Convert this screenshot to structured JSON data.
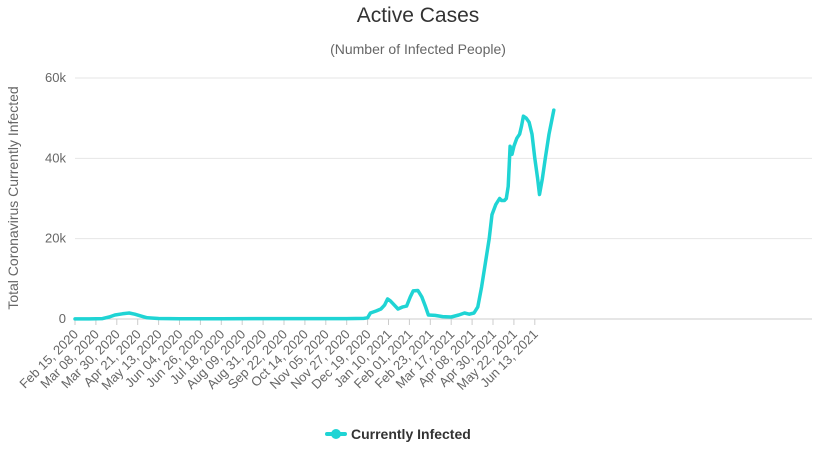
{
  "chart_data": {
    "type": "line",
    "title": "Active Cases",
    "subtitle": "(Number of Infected People)",
    "xlabel": "",
    "ylabel": "Total Coronavirus Currently Infected",
    "ylim": [
      0,
      60000
    ],
    "y_ticks": [
      0,
      20000,
      40000,
      60000
    ],
    "y_tick_labels": [
      "0",
      "20k",
      "40k",
      "60k"
    ],
    "x_tick_labels": [
      "Feb 15, 2020",
      "Mar 08, 2020",
      "Mar 30, 2020",
      "Apr 21, 2020",
      "May 13, 2020",
      "Jun 04, 2020",
      "Jun 26, 2020",
      "Jul 18, 2020",
      "Aug 09, 2020",
      "Aug 31, 2020",
      "Sep 22, 2020",
      "Oct 14, 2020",
      "Nov 05, 2020",
      "Nov 27, 2020",
      "Dec 19, 2020",
      "Jan 10, 2021",
      "Feb 01, 2021",
      "Feb 23, 2021",
      "Mar 17, 2021",
      "Apr 08, 2021",
      "Apr 30, 2021",
      "May 22, 2021",
      "Jun 13, 2021"
    ],
    "grid": true,
    "legend_position": "bottom-center",
    "series": [
      {
        "name": "Currently Infected",
        "color": "#1fd4d4",
        "points": [
          [
            "2020-02-15",
            20
          ],
          [
            "2020-03-01",
            20
          ],
          [
            "2020-03-15",
            100
          ],
          [
            "2020-03-22",
            500
          ],
          [
            "2020-03-28",
            1000
          ],
          [
            "2020-04-05",
            1300
          ],
          [
            "2020-04-12",
            1500
          ],
          [
            "2020-04-18",
            1200
          ],
          [
            "2020-04-25",
            700
          ],
          [
            "2020-05-01",
            300
          ],
          [
            "2020-05-13",
            120
          ],
          [
            "2020-06-04",
            80
          ],
          [
            "2020-07-18",
            80
          ],
          [
            "2020-09-22",
            100
          ],
          [
            "2020-11-27",
            100
          ],
          [
            "2020-12-15",
            150
          ],
          [
            "2020-12-19",
            300
          ],
          [
            "2020-12-22",
            1500
          ],
          [
            "2020-12-28",
            2000
          ],
          [
            "2021-01-02",
            2500
          ],
          [
            "2021-01-06",
            3500
          ],
          [
            "2021-01-09",
            5000
          ],
          [
            "2021-01-12",
            4500
          ],
          [
            "2021-01-16",
            3500
          ],
          [
            "2021-01-20",
            2500
          ],
          [
            "2021-01-25",
            3000
          ],
          [
            "2021-01-29",
            3200
          ],
          [
            "2021-02-02",
            5500
          ],
          [
            "2021-02-05",
            7000
          ],
          [
            "2021-02-10",
            7100
          ],
          [
            "2021-02-14",
            5500
          ],
          [
            "2021-02-18",
            3000
          ],
          [
            "2021-02-21",
            1000
          ],
          [
            "2021-02-28",
            900
          ],
          [
            "2021-03-08",
            600
          ],
          [
            "2021-03-17",
            500
          ],
          [
            "2021-03-25",
            1000
          ],
          [
            "2021-03-31",
            1500
          ],
          [
            "2021-04-05",
            1200
          ],
          [
            "2021-04-10",
            1500
          ],
          [
            "2021-04-14",
            3000
          ],
          [
            "2021-04-18",
            8000
          ],
          [
            "2021-04-22",
            14000
          ],
          [
            "2021-04-26",
            20000
          ],
          [
            "2021-04-29",
            26000
          ],
          [
            "2021-05-03",
            28500
          ],
          [
            "2021-05-07",
            30000
          ],
          [
            "2021-05-09",
            29500
          ],
          [
            "2021-05-12",
            29500
          ],
          [
            "2021-05-14",
            30000
          ],
          [
            "2021-05-16",
            33000
          ],
          [
            "2021-05-18",
            43000
          ],
          [
            "2021-05-20",
            41000
          ],
          [
            "2021-05-22",
            43000
          ],
          [
            "2021-05-25",
            45000
          ],
          [
            "2021-05-28",
            46000
          ],
          [
            "2021-05-30",
            48000
          ],
          [
            "2021-06-01",
            50500
          ],
          [
            "2021-06-04",
            50000
          ],
          [
            "2021-06-07",
            49000
          ],
          [
            "2021-06-10",
            46000
          ],
          [
            "2021-06-13",
            40000
          ],
          [
            "2021-06-16",
            35000
          ],
          [
            "2021-06-18",
            31000
          ],
          [
            "2021-06-21",
            35000
          ],
          [
            "2021-06-24",
            40000
          ],
          [
            "2021-06-28",
            46000
          ],
          [
            "2021-07-03",
            52000
          ]
        ]
      }
    ]
  }
}
